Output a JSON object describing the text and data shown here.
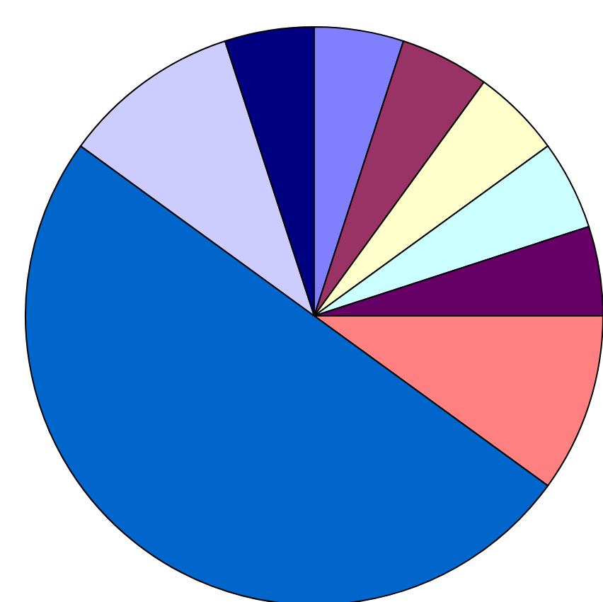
{
  "chart_data": {
    "type": "pie",
    "categories": [
      null,
      null,
      null,
      null,
      null,
      null,
      null,
      null,
      null
    ],
    "values": [
      5,
      5,
      5,
      5,
      5,
      10,
      50,
      10,
      5
    ],
    "colors": [
      "#8080ff",
      "#993366",
      "#ffffcc",
      "#ccffff",
      "#660066",
      "#ff8080",
      "#0066cc",
      "#ccccff",
      "#000080"
    ]
  }
}
